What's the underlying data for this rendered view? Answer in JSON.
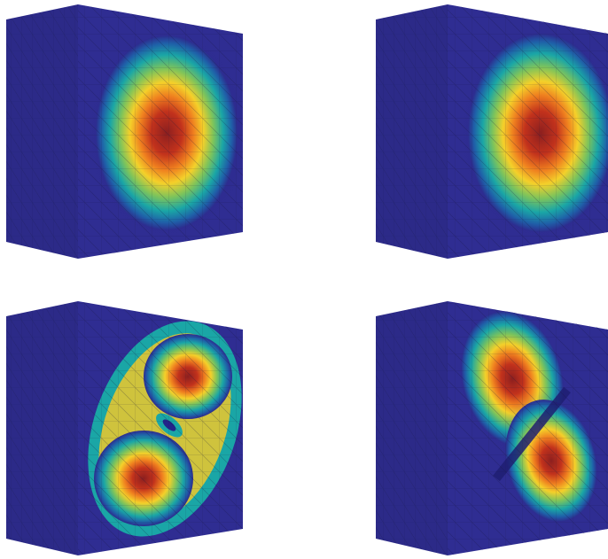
{
  "figure": {
    "panels": [
      {
        "id": "mode-1",
        "field": "single-lobe",
        "lobes": 1
      },
      {
        "id": "mode-2",
        "field": "single-lobe-shifted",
        "lobes": 1
      },
      {
        "id": "mode-3",
        "field": "two-lobe-diagonal-connected",
        "lobes": 2
      },
      {
        "id": "mode-4",
        "field": "two-lobe-diagonal-separated",
        "lobes": 2
      }
    ],
    "colormap": [
      "#2c2a8c",
      "#1f6fb0",
      "#1aa6a6",
      "#7fc45a",
      "#f2d02a",
      "#f08a1e",
      "#d23a1c",
      "#8c1f1f"
    ],
    "mesh_color": "#1a1a3a",
    "box_color": "#2d2b8e"
  }
}
